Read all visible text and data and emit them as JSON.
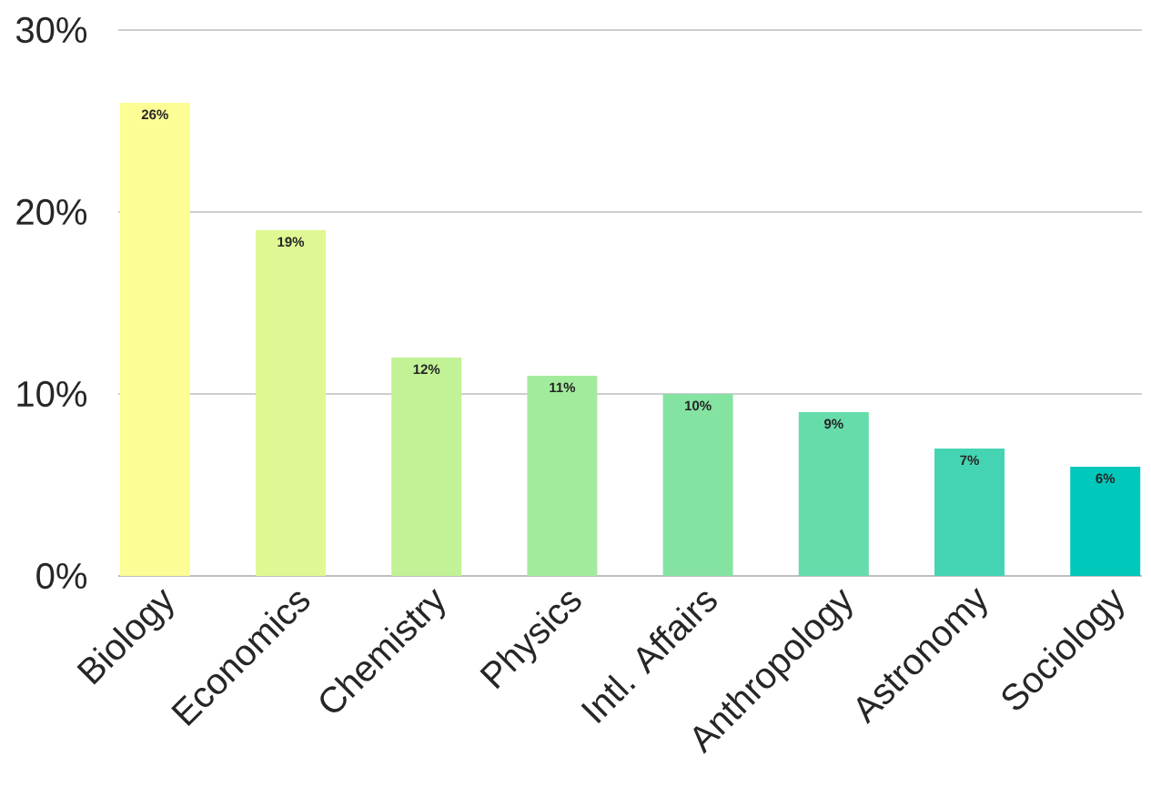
{
  "chart_data": {
    "type": "bar",
    "categories": [
      "Biology",
      "Economics",
      "Chemistry",
      "Physics",
      "Intl. Affairs",
      "Anthropology",
      "Astronomy",
      "Sociology"
    ],
    "values": [
      26,
      19,
      12,
      11,
      10,
      9,
      7,
      6
    ],
    "value_labels": [
      "26%",
      "19%",
      "12%",
      "11%",
      "10%",
      "9%",
      "7%",
      "6%"
    ],
    "colors": [
      "#fdfd96",
      "#e0f893",
      "#c2f296",
      "#a3eb9c",
      "#85e3a2",
      "#66dcab",
      "#45d4b3",
      "#00c8bb"
    ],
    "ylim": [
      0,
      30
    ],
    "yticks": [
      {
        "value": 0,
        "label": "0%"
      },
      {
        "value": 10,
        "label": "10%"
      },
      {
        "value": 20,
        "label": "20%"
      },
      {
        "value": 30,
        "label": "30%"
      }
    ],
    "grid": "y"
  }
}
